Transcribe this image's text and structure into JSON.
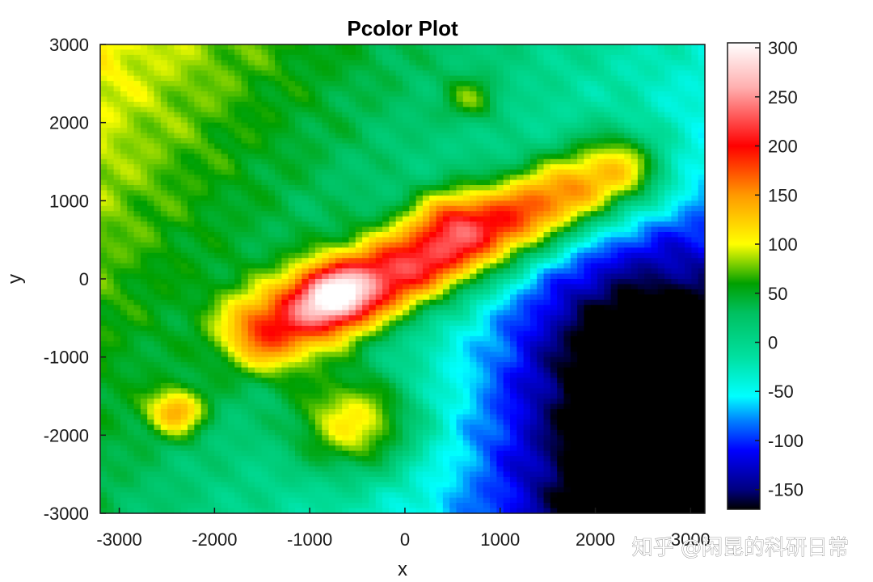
{
  "chart_data": {
    "type": "heatmap",
    "title": "Pcolor Plot",
    "xlabel": "x",
    "ylabel": "y",
    "xlim": [
      -3200,
      3150
    ],
    "ylim": [
      -3000,
      3000
    ],
    "xticks": [
      -3000,
      -2000,
      -1000,
      0,
      1000,
      2000,
      3000
    ],
    "xtick_labels": [
      "-3000",
      "-2000",
      "-1000",
      "0",
      "1000",
      "2000",
      "3000"
    ],
    "yticks": [
      -3000,
      -2000,
      -1000,
      0,
      1000,
      2000,
      3000
    ],
    "ytick_labels": [
      "-3000",
      "-2000",
      "-1000",
      "0",
      "1000",
      "2000",
      "3000"
    ],
    "colorbar": {
      "limits": [
        -170,
        305
      ],
      "ticks": [
        -150,
        -100,
        -50,
        0,
        50,
        100,
        150,
        200,
        250,
        300
      ],
      "tick_labels": [
        "-150",
        "-100",
        "-50",
        "0",
        "50",
        "100",
        "150",
        "200",
        "250",
        "300"
      ],
      "stops": [
        {
          "value": -170,
          "color": "#000000"
        },
        {
          "value": -150,
          "color": "#000080"
        },
        {
          "value": -110,
          "color": "#0000ff"
        },
        {
          "value": -80,
          "color": "#0080ff"
        },
        {
          "value": -55,
          "color": "#00ffff"
        },
        {
          "value": -15,
          "color": "#00e0a0"
        },
        {
          "value": 30,
          "color": "#00c060"
        },
        {
          "value": 60,
          "color": "#00a000"
        },
        {
          "value": 100,
          "color": "#ffff00"
        },
        {
          "value": 150,
          "color": "#ff9900"
        },
        {
          "value": 200,
          "color": "#ff0000"
        },
        {
          "value": 260,
          "color": "#ffb0b0"
        },
        {
          "value": 305,
          "color": "#ffffff"
        }
      ]
    },
    "surface": {
      "grid": [
        90,
        90
      ],
      "base_value": 0,
      "features": [
        {
          "kind": "ridge",
          "x0": -1400,
          "y0": -650,
          "x1": 2200,
          "y1": 1350,
          "amplitude": 230,
          "width": 520
        },
        {
          "kind": "peak",
          "x": -750,
          "y": -200,
          "amplitude": 120,
          "radius": 380
        },
        {
          "kind": "peak",
          "x": 450,
          "y": 850,
          "amplitude": 60,
          "radius": 350
        },
        {
          "kind": "peak",
          "x": -500,
          "y": -1850,
          "amplitude": 120,
          "radius": 650
        },
        {
          "kind": "peak",
          "x": -2400,
          "y": -1700,
          "amplitude": 110,
          "radius": 300
        },
        {
          "kind": "peak",
          "x": 700,
          "y": 2300,
          "amplitude": 60,
          "radius": 300
        },
        {
          "kind": "basin",
          "x": 3100,
          "y": -2800,
          "amplitude": -170,
          "radius": 1800
        },
        {
          "kind": "basin",
          "x": 2400,
          "y": -700,
          "amplitude": -110,
          "radius": 1400
        },
        {
          "kind": "slope",
          "gx": -0.022,
          "gy": 0.012
        }
      ]
    }
  },
  "watermark": {
    "text": "知乎 @闲昆的科研日常"
  }
}
